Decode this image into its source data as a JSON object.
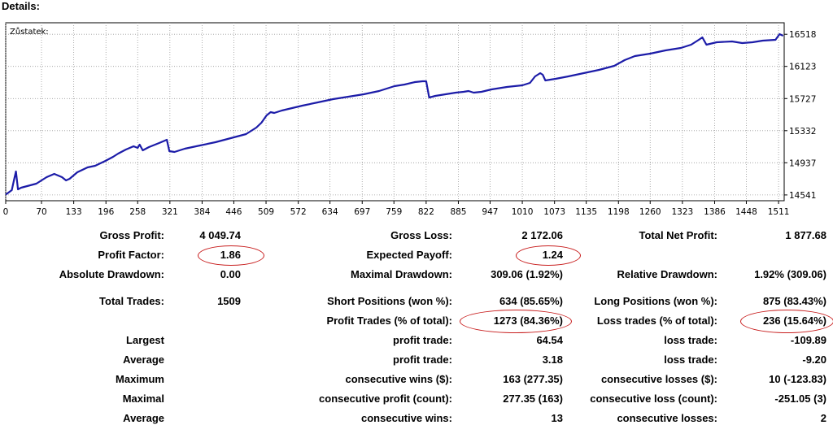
{
  "header": {
    "title": "Details:"
  },
  "chart_data": {
    "type": "line",
    "series_label": "Zůstatek:",
    "line_color": "#1c1ca8",
    "x_ticks": [
      0,
      70,
      133,
      196,
      258,
      321,
      384,
      446,
      509,
      572,
      634,
      697,
      759,
      822,
      885,
      947,
      1010,
      1073,
      1135,
      1198,
      1260,
      1323,
      1386,
      1448,
      1511
    ],
    "y_ticks": [
      14541,
      14937,
      15332,
      15727,
      16123,
      16518
    ],
    "xlim": [
      0,
      1522
    ],
    "ylim": [
      14470,
      16660
    ],
    "grid": true,
    "points": [
      [
        0,
        14545
      ],
      [
        12,
        14600
      ],
      [
        16,
        14720
      ],
      [
        20,
        14830
      ],
      [
        24,
        14610
      ],
      [
        30,
        14630
      ],
      [
        60,
        14680
      ],
      [
        80,
        14760
      ],
      [
        95,
        14800
      ],
      [
        110,
        14760
      ],
      [
        118,
        14720
      ],
      [
        125,
        14740
      ],
      [
        140,
        14820
      ],
      [
        160,
        14880
      ],
      [
        175,
        14900
      ],
      [
        195,
        14960
      ],
      [
        210,
        15010
      ],
      [
        220,
        15050
      ],
      [
        235,
        15100
      ],
      [
        250,
        15140
      ],
      [
        258,
        15120
      ],
      [
        262,
        15160
      ],
      [
        268,
        15090
      ],
      [
        280,
        15130
      ],
      [
        300,
        15180
      ],
      [
        315,
        15220
      ],
      [
        320,
        15080
      ],
      [
        330,
        15070
      ],
      [
        350,
        15110
      ],
      [
        380,
        15150
      ],
      [
        410,
        15190
      ],
      [
        440,
        15240
      ],
      [
        470,
        15290
      ],
      [
        490,
        15370
      ],
      [
        500,
        15430
      ],
      [
        510,
        15520
      ],
      [
        518,
        15560
      ],
      [
        525,
        15550
      ],
      [
        540,
        15580
      ],
      [
        560,
        15610
      ],
      [
        580,
        15640
      ],
      [
        610,
        15680
      ],
      [
        640,
        15720
      ],
      [
        670,
        15750
      ],
      [
        700,
        15780
      ],
      [
        730,
        15820
      ],
      [
        760,
        15880
      ],
      [
        780,
        15900
      ],
      [
        800,
        15930
      ],
      [
        815,
        15940
      ],
      [
        822,
        15940
      ],
      [
        828,
        15740
      ],
      [
        840,
        15760
      ],
      [
        860,
        15780
      ],
      [
        880,
        15800
      ],
      [
        895,
        15810
      ],
      [
        905,
        15820
      ],
      [
        915,
        15800
      ],
      [
        930,
        15810
      ],
      [
        950,
        15840
      ],
      [
        980,
        15870
      ],
      [
        1010,
        15890
      ],
      [
        1025,
        15920
      ],
      [
        1035,
        16000
      ],
      [
        1045,
        16040
      ],
      [
        1050,
        16020
      ],
      [
        1055,
        15950
      ],
      [
        1075,
        15970
      ],
      [
        1100,
        16000
      ],
      [
        1130,
        16040
      ],
      [
        1160,
        16080
      ],
      [
        1190,
        16130
      ],
      [
        1210,
        16200
      ],
      [
        1230,
        16250
      ],
      [
        1260,
        16280
      ],
      [
        1290,
        16320
      ],
      [
        1320,
        16350
      ],
      [
        1340,
        16390
      ],
      [
        1355,
        16450
      ],
      [
        1362,
        16480
      ],
      [
        1370,
        16390
      ],
      [
        1390,
        16420
      ],
      [
        1420,
        16430
      ],
      [
        1440,
        16410
      ],
      [
        1460,
        16420
      ],
      [
        1480,
        16440
      ],
      [
        1505,
        16450
      ],
      [
        1513,
        16520
      ],
      [
        1520,
        16500
      ]
    ]
  },
  "stats": {
    "gross_profit_label": "Gross Profit:",
    "gross_profit": "4 049.74",
    "gross_loss_label": "Gross Loss:",
    "gross_loss": "2 172.06",
    "net_profit_label": "Total Net Profit:",
    "net_profit": "1 877.68",
    "profit_factor_label": "Profit Factor:",
    "profit_factor": "1.86",
    "expected_payoff_label": "Expected Payoff:",
    "expected_payoff": "1.24",
    "abs_dd_label": "Absolute Drawdown:",
    "abs_dd": "0.00",
    "max_dd_label": "Maximal Drawdown:",
    "max_dd": "309.06 (1.92%)",
    "rel_dd_label": "Relative Drawdown:",
    "rel_dd": "1.92% (309.06)",
    "total_trades_label": "Total Trades:",
    "total_trades": "1509",
    "short_pos_label": "Short Positions (won %):",
    "short_pos": "634 (85.65%)",
    "long_pos_label": "Long Positions (won %):",
    "long_pos": "875 (83.43%)",
    "profit_trades_label": "Profit Trades (% of total):",
    "profit_trades": "1273 (84.36%)",
    "loss_trades_label": "Loss trades (% of total):",
    "loss_trades": "236 (15.64%)",
    "largest_label": "Largest",
    "largest_profit_label": "profit trade:",
    "largest_profit": "64.54",
    "largest_loss_label": "loss trade:",
    "largest_loss": "-109.89",
    "average_label": "Average",
    "average_profit_label": "profit trade:",
    "average_profit": "3.18",
    "average_loss_label": "loss trade:",
    "average_loss": "-9.20",
    "maximum_label": "Maximum",
    "max_cons_wins_label": "consecutive wins ($):",
    "max_cons_wins": "163 (277.35)",
    "max_cons_losses_label": "consecutive losses ($):",
    "max_cons_losses": "10 (-123.83)",
    "maximal_label": "Maximal",
    "maximal_cons_profit_label": "consecutive profit (count):",
    "maximal_cons_profit": "277.35 (163)",
    "maximal_cons_loss_label": "consecutive loss (count):",
    "maximal_cons_loss": "-251.05 (3)",
    "average2_label": "Average",
    "avg_cons_wins_label": "consecutive wins:",
    "avg_cons_wins": "13",
    "avg_cons_losses_label": "consecutive losses:",
    "avg_cons_losses": "2"
  }
}
